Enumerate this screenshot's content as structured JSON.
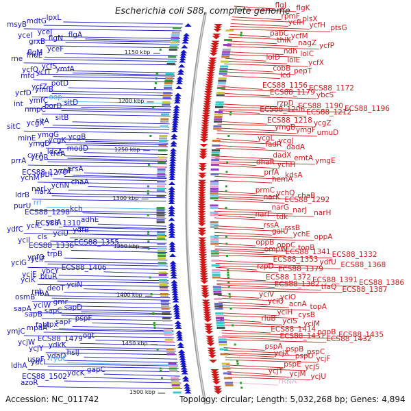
{
  "title": "Escherichia coli S88, complete genome",
  "footer": {
    "accession": "Accession: NC_011742",
    "stats": "Topology: circular; Length: 5,032,268 bp; Genes: 4,894"
  },
  "colors": {
    "left_genes": "#1414c8",
    "right_genes": "#d01818",
    "rna_genes": "#3cb4f0",
    "rrna_genes": "#e8b4d4",
    "backbone": "#8a8a8a"
  },
  "ticks": [
    "1150 kbp",
    "1200 kbp",
    "1250 kbp",
    "1300 kbp",
    "1350 kbp",
    "1400 kbp",
    "1450 kbp",
    "1500 kbp"
  ],
  "left_labels": [
    {
      "t": "msyB",
      "c": "l"
    },
    {
      "t": "mdtG",
      "c": "l"
    },
    {
      "t": "lpxL",
      "c": "l"
    },
    {
      "t": "yceI",
      "c": "l"
    },
    {
      "t": "yceJ",
      "c": "l"
    },
    {
      "t": "grxB",
      "c": "l"
    },
    {
      "t": "flgN",
      "c": "l"
    },
    {
      "t": "flgA",
      "c": "l"
    },
    {
      "t": "flgM",
      "c": "l"
    },
    {
      "t": "yceF",
      "c": "l"
    },
    {
      "t": "rne",
      "c": "l"
    },
    {
      "t": "fhuE",
      "c": "l"
    },
    {
      "t": "ycfQ",
      "c": "l"
    },
    {
      "t": "ycfS",
      "c": "l"
    },
    {
      "t": "mfd",
      "c": "l"
    },
    {
      "t": "ycfT",
      "c": "l"
    },
    {
      "t": "ymfA",
      "c": "l"
    },
    {
      "t": "ycfZ",
      "c": "l"
    },
    {
      "t": "potD",
      "c": "l"
    },
    {
      "t": "ycfD",
      "c": "l"
    },
    {
      "t": "ymfB",
      "c": "l"
    },
    {
      "t": "int",
      "c": "l"
    },
    {
      "t": "ymfC",
      "c": "l"
    },
    {
      "t": "oop",
      "c": "lc"
    },
    {
      "t": "nmpC",
      "c": "l"
    },
    {
      "t": "borD",
      "c": "l"
    },
    {
      "t": "sitD",
      "c": "l"
    },
    {
      "t": "sitA",
      "c": "l"
    },
    {
      "t": "sitB",
      "c": "l"
    },
    {
      "t": "sitC",
      "c": "l"
    },
    {
      "t": "ycgX",
      "c": "l"
    },
    {
      "t": "minE",
      "c": "l"
    },
    {
      "t": "ymgG",
      "c": "l"
    },
    {
      "t": "ymgD",
      "c": "l"
    },
    {
      "t": "ycgK",
      "c": "l"
    },
    {
      "t": "ycgB",
      "c": "l"
    },
    {
      "t": "cvrA",
      "c": "l"
    },
    {
      "t": "ldcA",
      "c": "l"
    },
    {
      "t": "modD",
      "c": "l"
    },
    {
      "t": "prrA",
      "c": "l"
    },
    {
      "t": "ycgR",
      "c": "l"
    },
    {
      "t": "treA",
      "c": "l"
    },
    {
      "t": "ECS88_1270",
      "c": "l"
    },
    {
      "t": "prsA",
      "c": "l"
    },
    {
      "t": "ychM",
      "c": "l"
    },
    {
      "t": "pth",
      "c": "l"
    },
    {
      "t": "ychF",
      "c": "l"
    },
    {
      "t": "narL",
      "c": "l"
    },
    {
      "t": "ychN",
      "c": "l"
    },
    {
      "t": "chaA",
      "c": "l"
    },
    {
      "t": "ldrB",
      "c": "l"
    },
    {
      "t": "narX",
      "c": "l"
    },
    {
      "t": "purU",
      "c": "l"
    },
    {
      "t": "rrf",
      "c": "lc"
    },
    {
      "t": "ECS88_1298",
      "c": "l"
    },
    {
      "t": "kch",
      "c": "l"
    },
    {
      "t": "ECS88_1310",
      "c": "l"
    },
    {
      "t": "adhE",
      "c": "l"
    },
    {
      "t": "ydfC",
      "c": "l"
    },
    {
      "t": "yciC",
      "c": "l"
    },
    {
      "t": "yciA",
      "c": "l"
    },
    {
      "t": "yciI",
      "c": "l"
    },
    {
      "t": "cls",
      "c": "l"
    },
    {
      "t": "yciU",
      "c": "l"
    },
    {
      "t": "ydfB",
      "c": "l"
    },
    {
      "t": "ECS88_1336",
      "c": "l"
    },
    {
      "t": "ECS88_1355",
      "c": "l"
    },
    {
      "t": "ynfO",
      "c": "l"
    },
    {
      "t": "trpB",
      "c": "l"
    },
    {
      "t": "yciG",
      "c": "l"
    },
    {
      "t": "yciF",
      "c": "l"
    },
    {
      "t": "yciE",
      "c": "l"
    },
    {
      "t": "ybcY",
      "c": "l"
    },
    {
      "t": "ECS88_1406",
      "c": "l"
    },
    {
      "t": "yciK",
      "c": "l"
    },
    {
      "t": "btuR",
      "c": "l"
    },
    {
      "t": "rnb",
      "c": "l"
    },
    {
      "t": "deoT",
      "c": "l"
    },
    {
      "t": "yciN",
      "c": "l"
    },
    {
      "t": "osmB",
      "c": "l"
    },
    {
      "t": "ribA",
      "c": "l"
    },
    {
      "t": "sapA",
      "c": "l"
    },
    {
      "t": "yciW",
      "c": "l"
    },
    {
      "t": "gmr",
      "c": "l"
    },
    {
      "t": "sapB",
      "c": "l"
    },
    {
      "t": "sapC",
      "c": "l"
    },
    {
      "t": "sapD",
      "c": "l"
    },
    {
      "t": "fabI",
      "c": "l"
    },
    {
      "t": "sapF",
      "c": "l"
    },
    {
      "t": "pspF",
      "c": "l"
    },
    {
      "t": "ymjC",
      "c": "l"
    },
    {
      "t": "mpaA",
      "c": "l"
    },
    {
      "t": "tpx",
      "c": "l"
    },
    {
      "t": "ycjW",
      "c": "l"
    },
    {
      "t": "ECS88_1479",
      "c": "l"
    },
    {
      "t": "ogt",
      "c": "l"
    },
    {
      "t": "ycjY",
      "c": "l"
    },
    {
      "t": "ydkK",
      "c": "l"
    },
    {
      "t": "uspF",
      "c": "l"
    },
    {
      "t": "ydaO",
      "c": "l"
    },
    {
      "t": "hslJ",
      "c": "l"
    },
    {
      "t": "ldhA",
      "c": "l"
    },
    {
      "t": "ydcI",
      "c": "l"
    },
    {
      "t": "rydC",
      "c": "lc"
    },
    {
      "t": "ECS88_1502",
      "c": "l"
    },
    {
      "t": "ydcK",
      "c": "l"
    },
    {
      "t": "gapC",
      "c": "l"
    },
    {
      "t": "azoR",
      "c": "l"
    }
  ],
  "right_labels": [
    {
      "t": "flgJ",
      "c": "r"
    },
    {
      "t": "flgK",
      "c": "r"
    },
    {
      "t": "rpmF",
      "c": "r"
    },
    {
      "t": "plsX",
      "c": "r"
    },
    {
      "t": "ycfH",
      "c": "r"
    },
    {
      "t": "ycfH",
      "c": "r"
    },
    {
      "t": "ptsG",
      "c": "r"
    },
    {
      "t": "pabC",
      "c": "r"
    },
    {
      "t": "ycfM",
      "c": "r"
    },
    {
      "t": "thiK",
      "c": "r"
    },
    {
      "t": "nagZ",
      "c": "r"
    },
    {
      "t": "ycfP",
      "c": "r"
    },
    {
      "t": "ndh",
      "c": "r"
    },
    {
      "t": "lolC",
      "c": "r"
    },
    {
      "t": "lolD",
      "c": "r"
    },
    {
      "t": "lolE",
      "c": "r"
    },
    {
      "t": "ycfX",
      "c": "r"
    },
    {
      "t": "cobB",
      "c": "r"
    },
    {
      "t": "pepT",
      "c": "r"
    },
    {
      "t": "icd",
      "c": "r"
    },
    {
      "t": "ECS88_1156",
      "c": "r"
    },
    {
      "t": "ECS88_1172",
      "c": "r"
    },
    {
      "t": "ECS88_1179",
      "c": "r"
    },
    {
      "t": "ybcS",
      "c": "r"
    },
    {
      "t": "rzpD",
      "c": "r"
    },
    {
      "t": "ECS88_1190",
      "c": "r"
    },
    {
      "t": "ECS88_1196",
      "c": "r"
    },
    {
      "t": "ECS88_1206",
      "c": "r"
    },
    {
      "t": "ECS88_1212",
      "c": "r"
    },
    {
      "t": "ECS88_1218",
      "c": "r"
    },
    {
      "t": "ycgZ",
      "c": "r"
    },
    {
      "t": "ymgB",
      "c": "r"
    },
    {
      "t": "ymgF",
      "c": "r"
    },
    {
      "t": "umuD",
      "c": "r"
    },
    {
      "t": "ycgL",
      "c": "r"
    },
    {
      "t": "ycgJ",
      "c": "r"
    },
    {
      "t": "fadR",
      "c": "r"
    },
    {
      "t": "dadA",
      "c": "r"
    },
    {
      "t": "dadX",
      "c": "r"
    },
    {
      "t": "emtA",
      "c": "r"
    },
    {
      "t": "ymgE",
      "c": "r"
    },
    {
      "t": "dhaR",
      "c": "r"
    },
    {
      "t": "ychH",
      "c": "r"
    },
    {
      "t": "prfA",
      "c": "r"
    },
    {
      "t": "kdsA",
      "c": "r"
    },
    {
      "t": "hemA",
      "c": "r"
    },
    {
      "t": "prmC",
      "c": "r"
    },
    {
      "t": "ychQ",
      "c": "r"
    },
    {
      "t": "chaB",
      "c": "r"
    },
    {
      "t": "narK",
      "c": "r"
    },
    {
      "t": "ECS88_1292",
      "c": "r"
    },
    {
      "t": "narG",
      "c": "r"
    },
    {
      "t": "narJ",
      "c": "r"
    },
    {
      "t": "narH",
      "c": "r"
    },
    {
      "t": "narI",
      "c": "r"
    },
    {
      "t": "tdk",
      "c": "r"
    },
    {
      "t": "rssA",
      "c": "r"
    },
    {
      "t": "rssB",
      "c": "r"
    },
    {
      "t": "galU",
      "c": "r"
    },
    {
      "t": "ychE",
      "c": "r"
    },
    {
      "t": "oppA",
      "c": "r"
    },
    {
      "t": "oppB",
      "c": "r"
    },
    {
      "t": "oppC",
      "c": "r"
    },
    {
      "t": "tonB",
      "c": "r"
    },
    {
      "t": "ompW",
      "c": "r"
    },
    {
      "t": "ECS88_1341",
      "c": "r"
    },
    {
      "t": "ECS88_1332",
      "c": "r"
    },
    {
      "t": "ECS88_1353",
      "c": "r"
    },
    {
      "t": "ydfU",
      "c": "r"
    },
    {
      "t": "ECS88_1368",
      "c": "r"
    },
    {
      "t": "rzpD",
      "c": "r"
    },
    {
      "t": "ECS88_1379",
      "c": "r"
    },
    {
      "t": "ECS88_1372",
      "c": "r"
    },
    {
      "t": "ECS88_1391",
      "c": "r"
    },
    {
      "t": "ECS88_1386",
      "c": "r"
    },
    {
      "t": "ECS88_1382",
      "c": "r"
    },
    {
      "t": "tfaQ",
      "c": "r"
    },
    {
      "t": "ECS88_1387",
      "c": "r"
    },
    {
      "t": "yciV",
      "c": "r"
    },
    {
      "t": "yciO",
      "c": "r"
    },
    {
      "t": "yciQ",
      "c": "r"
    },
    {
      "t": "acnA",
      "c": "r"
    },
    {
      "t": "topA",
      "c": "r"
    },
    {
      "t": "yciH",
      "c": "r"
    },
    {
      "t": "cysB",
      "c": "r"
    },
    {
      "t": "rluB",
      "c": "r"
    },
    {
      "t": "yciS",
      "c": "r"
    },
    {
      "t": "yciM",
      "c": "r"
    },
    {
      "t": "ECS88_1414",
      "c": "r"
    },
    {
      "t": "pgpB",
      "c": "r"
    },
    {
      "t": "ECS88_1435",
      "c": "r"
    },
    {
      "t": "ECS88_1431",
      "c": "r"
    },
    {
      "t": "ECS88_1432",
      "c": "r"
    },
    {
      "t": "pspA",
      "c": "r"
    },
    {
      "t": "pspB",
      "c": "r"
    },
    {
      "t": "pspC",
      "c": "r"
    },
    {
      "t": "ycjX",
      "c": "r"
    },
    {
      "t": "pspD",
      "c": "r"
    },
    {
      "t": "ycjF",
      "c": "r"
    },
    {
      "t": "pspE",
      "c": "r"
    },
    {
      "t": "ycjS",
      "c": "r"
    },
    {
      "t": "ycjT",
      "c": "r"
    },
    {
      "t": "ycjM",
      "c": "r"
    },
    {
      "t": "ycjU",
      "c": "r"
    },
    {
      "t": "rRNA",
      "c": "rp"
    }
  ]
}
